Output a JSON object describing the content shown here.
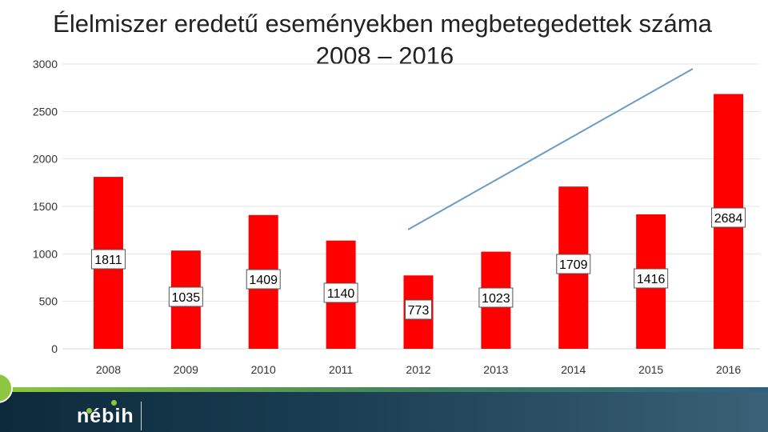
{
  "chart_data": {
    "type": "bar",
    "title": "Élelmiszer eredetű eseményekben megbetegedettek száma",
    "subtitle": "2008 – 2016",
    "categories": [
      "2008",
      "2009",
      "2010",
      "2011",
      "2012",
      "2013",
      "2014",
      "2015",
      "2016"
    ],
    "values": [
      1811,
      1035,
      1409,
      1140,
      773,
      1023,
      1709,
      1416,
      2684
    ],
    "data_labels": [
      "1811",
      "1035",
      "1409",
      "1140",
      "773",
      "1023",
      "1709",
      "1416",
      "2684"
    ],
    "y_ticks": [
      "0",
      "500",
      "1000",
      "1500",
      "2000",
      "2500",
      "3000"
    ],
    "ylim": [
      0,
      3000
    ],
    "grid": true,
    "bar_color": "#ff0000",
    "trend_color": "#6b9bc3"
  },
  "footer": {
    "logo_text": "nébih"
  },
  "colors": {
    "accent_green": "#8dc63f",
    "footer_dark": "#1b3e52"
  }
}
